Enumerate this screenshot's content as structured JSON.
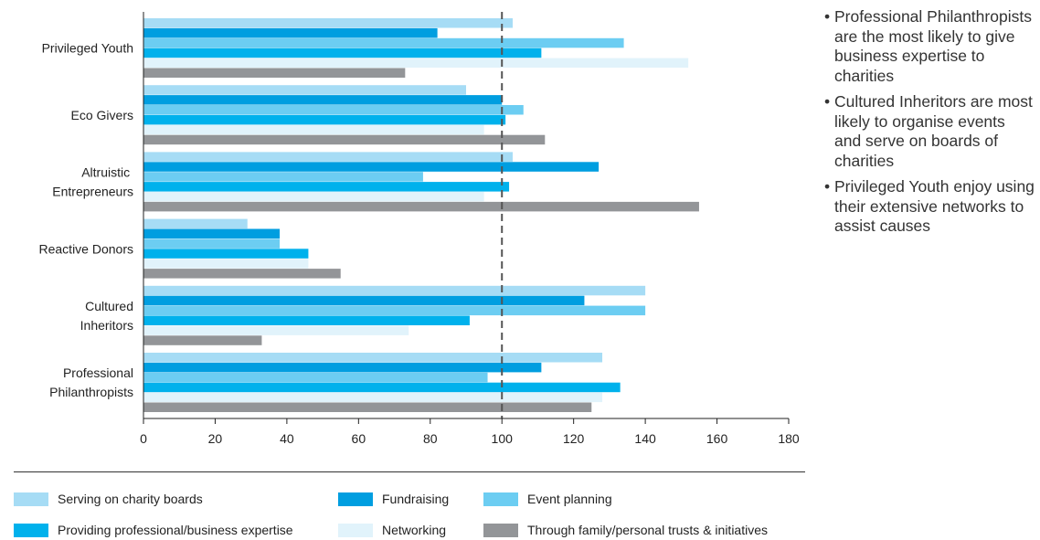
{
  "chart_data": {
    "type": "bar",
    "orientation": "horizontal",
    "categories": [
      "Privileged Youth",
      "Eco Givers",
      "Altruistic Entrepreneurs",
      "Reactive Donors",
      "Cultured Inheritors",
      "Professional Philanthropists"
    ],
    "category_label_lines": [
      [
        "Privileged Youth"
      ],
      [
        "Eco Givers"
      ],
      [
        "Altruistic ",
        "Entrepreneurs"
      ],
      [
        "Reactive Donors"
      ],
      [
        "Cultured",
        "Inheritors"
      ],
      [
        "Professional",
        "Philanthropists"
      ]
    ],
    "series": [
      {
        "name": "Serving on charity boards",
        "color": "#a6dcf5",
        "values": [
          103,
          90,
          103,
          29,
          140,
          128
        ]
      },
      {
        "name": "Fundraising",
        "color": "#009ee0",
        "values": [
          82,
          100,
          127,
          38,
          123,
          111
        ]
      },
      {
        "name": "Event planning",
        "color": "#6ccdf2",
        "values": [
          134,
          106,
          78,
          38,
          140,
          96
        ]
      },
      {
        "name": "Providing professional/business expertise",
        "color": "#00b1ec",
        "values": [
          111,
          101,
          102,
          46,
          91,
          133
        ]
      },
      {
        "name": "Networking",
        "color": "#e1f3fb",
        "values": [
          152,
          95,
          95,
          46,
          74,
          128
        ]
      },
      {
        "name": "Through family/personal trusts & initiatives",
        "color": "#939598",
        "values": [
          73,
          112,
          155,
          55,
          33,
          125
        ]
      }
    ],
    "xlim": [
      0,
      180
    ],
    "xticks": [
      "0",
      "20",
      "40",
      "60",
      "80",
      "100",
      "120",
      "140",
      "160",
      "180"
    ],
    "reference_line": 100,
    "xlabel": "",
    "ylabel": "",
    "grid": false,
    "legend_position": "bottom"
  },
  "notes": [
    "Professional Philanthropists are the most likely to give business expertise to charities",
    "Cultured Inheritors are most likely to organise events and serve on boards of charities",
    "Privileged Youth enjoy using their extensive networks to assist causes"
  ]
}
